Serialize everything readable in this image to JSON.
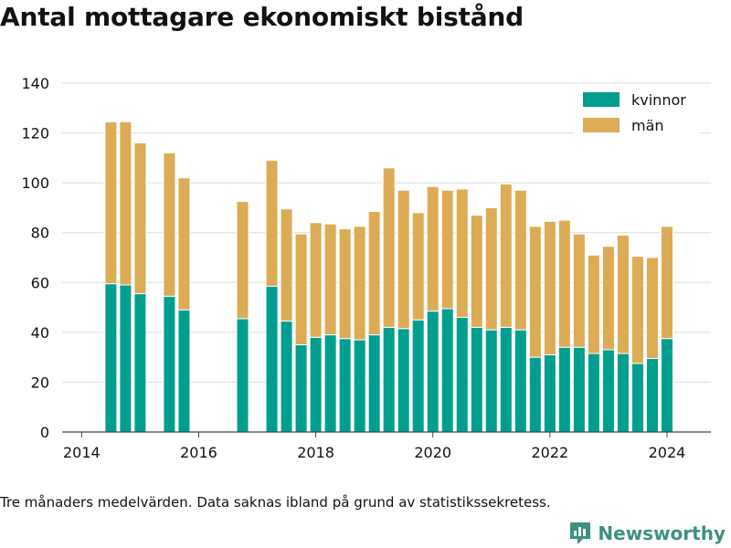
{
  "title": "Antal mottagare ekonomiskt bistånd",
  "footnote": "Tre månaders medelvärden. Data saknas ibland på grund av statistikssekretess.",
  "brand": {
    "name": "Newsworthy",
    "icon": "newsworthy-logo-icon",
    "color": "#3d8f82"
  },
  "chart_data": {
    "type": "bar",
    "stacked": true,
    "title": "Antal mottagare ekonomiskt bistånd",
    "xlabel": "",
    "ylabel": "",
    "ylim": [
      0,
      140
    ],
    "yticks": [
      "0",
      "20",
      "40",
      "60",
      "80",
      "100",
      "120",
      "140"
    ],
    "xticks": [
      "2014",
      "2016",
      "2018",
      "2020",
      "2022",
      "2024"
    ],
    "xlim": [
      "2013-09-01",
      "2024-10-01"
    ],
    "grid": true,
    "legend_position": "top-right",
    "x": [
      "2014-07",
      "2014-10",
      "2015-01",
      "2015-07",
      "2015-10",
      "2016-10",
      "2017-04",
      "2017-07",
      "2017-10",
      "2018-01",
      "2018-04",
      "2018-07",
      "2018-10",
      "2019-01",
      "2019-04",
      "2019-07",
      "2019-10",
      "2020-01",
      "2020-04",
      "2020-07",
      "2020-10",
      "2021-01",
      "2021-04",
      "2021-07",
      "2021-10",
      "2022-01",
      "2022-04",
      "2022-07",
      "2022-10",
      "2023-01",
      "2023-04",
      "2023-07",
      "2023-10",
      "2024-01"
    ],
    "series": [
      {
        "name": "kvinnor",
        "color": "#009e8e",
        "values": [
          59.5,
          59,
          55.5,
          54.5,
          49,
          45.5,
          58.5,
          44.5,
          35,
          38,
          39,
          37.5,
          37,
          39,
          42,
          41.5,
          45,
          48.5,
          49.5,
          46,
          42,
          41,
          42,
          41,
          30,
          31,
          34,
          34,
          31.5,
          33,
          31.5,
          27.5,
          29.5,
          37.5
        ]
      },
      {
        "name": "män",
        "color": "#dcab55",
        "values": [
          65,
          65.5,
          60.5,
          57.5,
          53,
          47,
          50.5,
          45,
          44.5,
          46,
          44.5,
          44,
          45.5,
          49.5,
          64,
          55.5,
          43,
          50,
          47.5,
          51.5,
          45,
          49,
          57.5,
          56,
          52.5,
          53.5,
          51,
          45.5,
          39.5,
          41.5,
          47.5,
          43,
          40.5,
          45
        ]
      }
    ]
  }
}
